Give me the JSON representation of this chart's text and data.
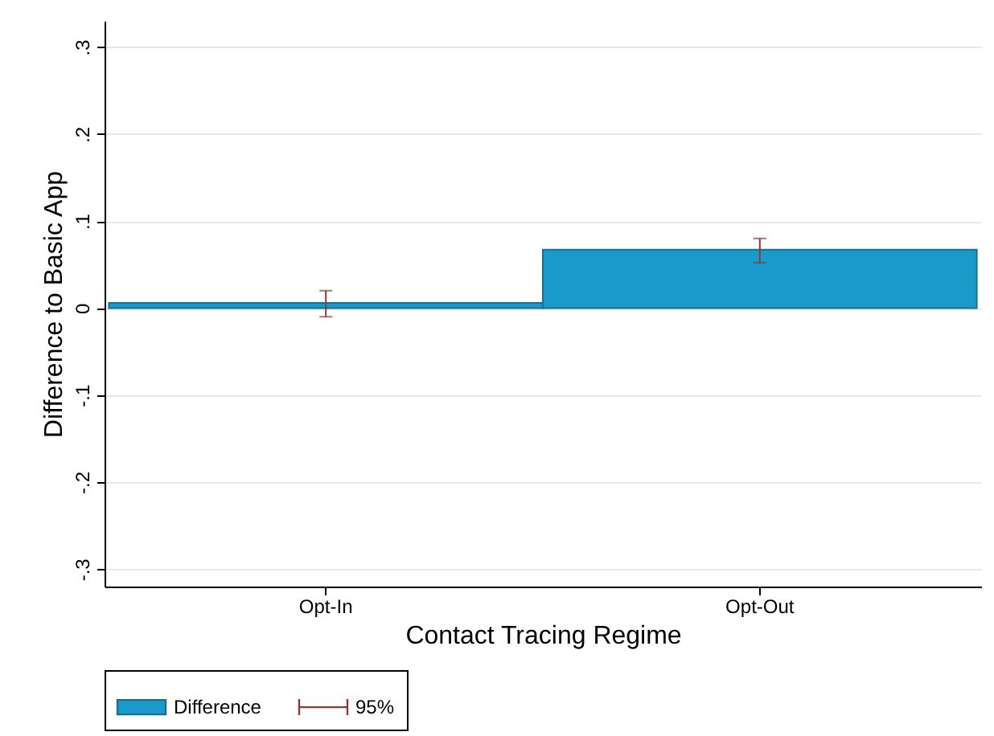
{
  "chart_data": {
    "type": "bar",
    "xlabel": "Contact Tracing Regime",
    "ylabel": "Difference to Basic App",
    "categories": [
      "Opt-In",
      "Opt-Out"
    ],
    "series": [
      {
        "name": "Difference",
        "color": "#1a9ac9",
        "values": [
          0.006,
          0.067
        ],
        "errors": [
          [
            -0.01,
            0.02
          ],
          [
            0.052,
            0.08
          ]
        ]
      }
    ],
    "annotations": [
      "95%"
    ],
    "ylim": [
      -0.32,
      0.33
    ],
    "yticks": [
      {
        "value": -0.3,
        "label": "-.3"
      },
      {
        "value": -0.2,
        "label": "-.2"
      },
      {
        "value": -0.1,
        "label": "-.1"
      },
      0,
      {
        "value": 0.1,
        "label": ".1"
      },
      {
        "value": 0.2,
        "label": ".2"
      },
      {
        "value": 0.3,
        "label": ".3"
      }
    ],
    "grid": "y",
    "legend": "bottom"
  }
}
